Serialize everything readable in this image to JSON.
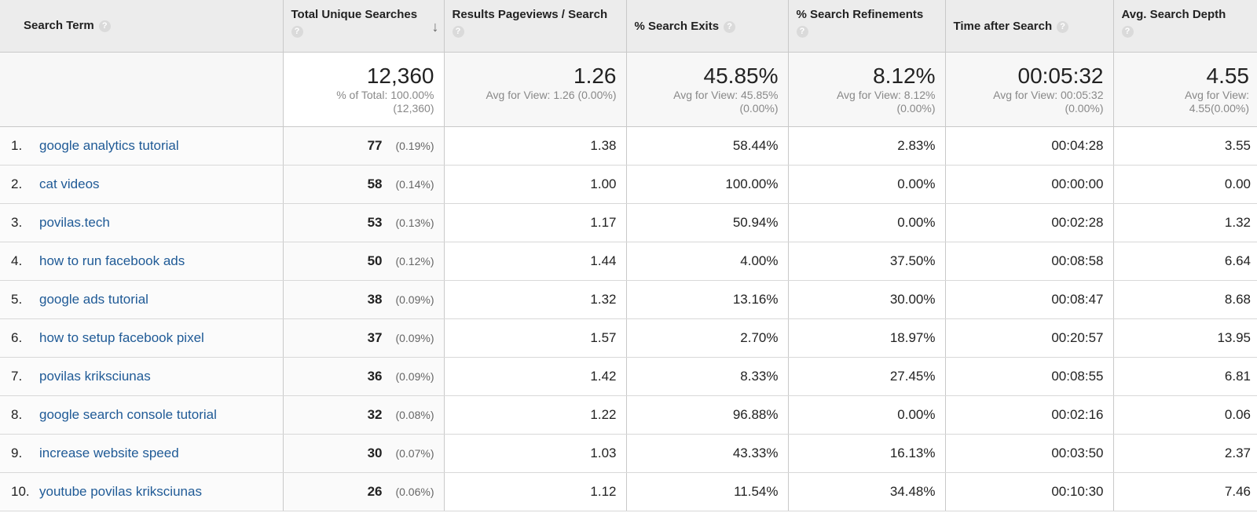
{
  "columns": [
    {
      "label": "Search Term",
      "help": "?"
    },
    {
      "label": "Total Unique Searches",
      "help": "?",
      "sort": "↓"
    },
    {
      "label": "Results Pageviews / Search",
      "help": "?"
    },
    {
      "label": "% Search Exits",
      "help": "?"
    },
    {
      "label": "% Search Refinements",
      "help": "?"
    },
    {
      "label": "Time after Search",
      "help": "?"
    },
    {
      "label": "Avg. Search Depth",
      "help": "?"
    }
  ],
  "totals": [
    {
      "value": "12,360",
      "sub1": "% of Total: 100.00%",
      "sub2": "(12,360)"
    },
    {
      "value": "1.26",
      "sub1": "Avg for View: 1.26 (0.00%)",
      "sub2": ""
    },
    {
      "value": "45.85%",
      "sub1": "Avg for View: 45.85%",
      "sub2": "(0.00%)"
    },
    {
      "value": "8.12%",
      "sub1": "Avg for View: 8.12%",
      "sub2": "(0.00%)"
    },
    {
      "value": "00:05:32",
      "sub1": "Avg for View: 00:05:32",
      "sub2": "(0.00%)"
    },
    {
      "value": "4.55",
      "sub1": "Avg for View:",
      "sub2": "4.55(0.00%)"
    }
  ],
  "rows": [
    {
      "index": "1.",
      "term": "google analytics tutorial",
      "unique": "77",
      "unique_pct": "(0.19%)",
      "pageviews": "1.38",
      "exits": "58.44%",
      "refinements": "2.83%",
      "time": "00:04:28",
      "depth": "3.55"
    },
    {
      "index": "2.",
      "term": "cat videos",
      "unique": "58",
      "unique_pct": "(0.14%)",
      "pageviews": "1.00",
      "exits": "100.00%",
      "refinements": "0.00%",
      "time": "00:00:00",
      "depth": "0.00"
    },
    {
      "index": "3.",
      "term": "povilas.tech",
      "unique": "53",
      "unique_pct": "(0.13%)",
      "pageviews": "1.17",
      "exits": "50.94%",
      "refinements": "0.00%",
      "time": "00:02:28",
      "depth": "1.32"
    },
    {
      "index": "4.",
      "term": "how to run facebook ads",
      "unique": "50",
      "unique_pct": "(0.12%)",
      "pageviews": "1.44",
      "exits": "4.00%",
      "refinements": "37.50%",
      "time": "00:08:58",
      "depth": "6.64"
    },
    {
      "index": "5.",
      "term": "google ads tutorial",
      "unique": "38",
      "unique_pct": "(0.09%)",
      "pageviews": "1.32",
      "exits": "13.16%",
      "refinements": "30.00%",
      "time": "00:08:47",
      "depth": "8.68"
    },
    {
      "index": "6.",
      "term": "how to setup facebook pixel",
      "unique": "37",
      "unique_pct": "(0.09%)",
      "pageviews": "1.57",
      "exits": "2.70%",
      "refinements": "18.97%",
      "time": "00:20:57",
      "depth": "13.95"
    },
    {
      "index": "7.",
      "term": "povilas kriksciunas",
      "unique": "36",
      "unique_pct": "(0.09%)",
      "pageviews": "1.42",
      "exits": "8.33%",
      "refinements": "27.45%",
      "time": "00:08:55",
      "depth": "6.81"
    },
    {
      "index": "8.",
      "term": "google search console tutorial",
      "unique": "32",
      "unique_pct": "(0.08%)",
      "pageviews": "1.22",
      "exits": "96.88%",
      "refinements": "0.00%",
      "time": "00:02:16",
      "depth": "0.06"
    },
    {
      "index": "9.",
      "term": "increase website speed",
      "unique": "30",
      "unique_pct": "(0.07%)",
      "pageviews": "1.03",
      "exits": "43.33%",
      "refinements": "16.13%",
      "time": "00:03:50",
      "depth": "2.37"
    },
    {
      "index": "10.",
      "term": "youtube povilas kriksciunas",
      "unique": "26",
      "unique_pct": "(0.06%)",
      "pageviews": "1.12",
      "exits": "11.54%",
      "refinements": "34.48%",
      "time": "00:10:30",
      "depth": "7.46"
    }
  ]
}
